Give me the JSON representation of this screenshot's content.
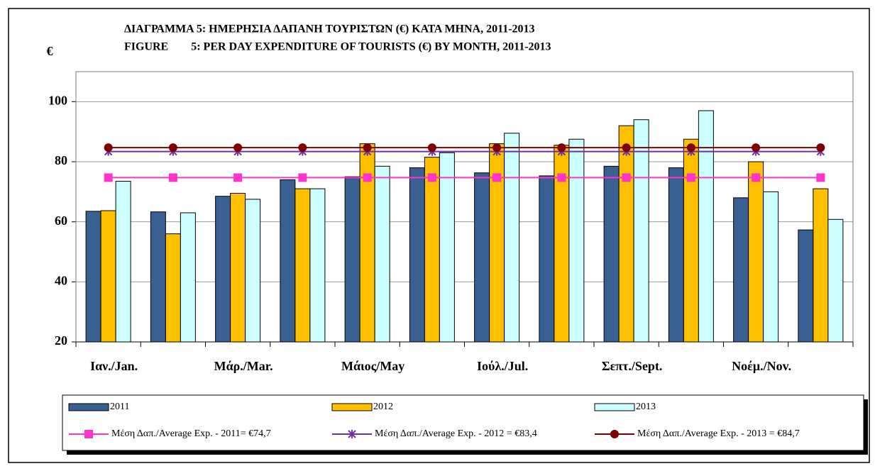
{
  "chart_data": {
    "type": "bar",
    "title": "ΔΙΑΓΡΑΜΜΑ 5: ΗΜΕΡΗΣΙΑ ΔΑΠΑΝΗ ΤΟΥΡΙΣΤΩΝ (€) ΚΑΤΑ ΜΗΝΑ, 2011-2013",
    "subtitle": "FIGURE        5: PER DAY EXPENDITURE OF TOURISTS (€) BY MONTH, 2011-2013",
    "y_label": "€",
    "categories": [
      "Ιαν./Jan.",
      null,
      "Μάρ./Mar.",
      null,
      "Μάιος/May",
      null,
      "Ιούλ./Jul.",
      null,
      "Σεπτ./Sept.",
      null,
      "Νοέμ./Nov.",
      null
    ],
    "series": [
      {
        "name": "2011",
        "type": "bar",
        "color": "#3a5f93",
        "values": [
          63.5,
          63.3,
          68.5,
          74,
          75,
          78,
          76.3,
          75.3,
          78.5,
          78,
          68,
          57.3
        ]
      },
      {
        "name": "2012",
        "type": "bar",
        "color": "#ffc000",
        "values": [
          63.7,
          56,
          69.5,
          71,
          86,
          81.5,
          86,
          85.5,
          92,
          87.5,
          80,
          71
        ]
      },
      {
        "name": "2013",
        "type": "bar",
        "color": "#ccffff",
        "values": [
          73.5,
          63,
          67.5,
          71,
          78.5,
          83,
          89.5,
          87.5,
          94,
          97,
          70,
          60.8
        ]
      },
      {
        "name": "Μέση Δαπ./Average Exp. - 2011= €74,7",
        "type": "line",
        "marker": "square",
        "color": "#ff33cc",
        "values": [
          74.7,
          74.7,
          74.7,
          74.7,
          74.7,
          74.7,
          74.7,
          74.7,
          74.7,
          74.7,
          74.7,
          74.7
        ]
      },
      {
        "name": "Μέση Δαπ./Average Exp. - 2012 = €83,4",
        "type": "line",
        "marker": "star",
        "color": "#7030a0",
        "values": [
          83.4,
          83.4,
          83.4,
          83.4,
          83.4,
          83.4,
          83.4,
          83.4,
          83.4,
          83.4,
          83.4,
          83.4
        ]
      },
      {
        "name": "Μέση Δαπ./Average Exp. - 2013 = €84,7",
        "type": "line",
        "marker": "circle",
        "color": "#800000",
        "values": [
          84.7,
          84.7,
          84.7,
          84.7,
          84.7,
          84.7,
          84.7,
          84.7,
          84.7,
          84.7,
          84.7,
          84.7
        ]
      }
    ],
    "ylim": [
      20,
      110
    ],
    "yticks": [
      20,
      40,
      60,
      80,
      100
    ],
    "grid": true
  }
}
